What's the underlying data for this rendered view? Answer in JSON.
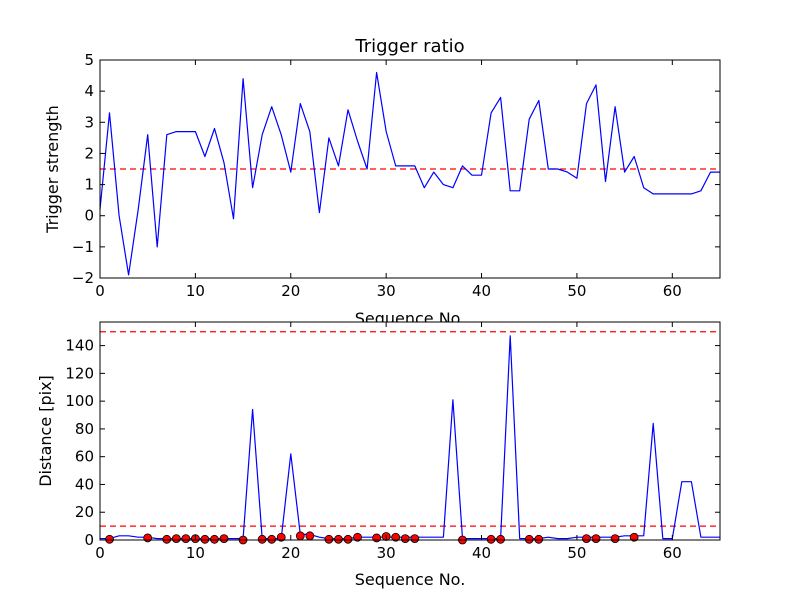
{
  "chart_data": [
    {
      "type": "line",
      "title": "Trigger ratio",
      "xlabel": "Sequence No.",
      "ylabel": "Trigger strength",
      "xlim": [
        0,
        65
      ],
      "ylim": [
        -2,
        5
      ],
      "xticks": [
        0,
        10,
        20,
        30,
        40,
        50,
        60
      ],
      "yticks": [
        -2,
        -1,
        0,
        1,
        2,
        3,
        4,
        5
      ],
      "grid": false,
      "legend": "none",
      "series": [
        {
          "color": "#0000ff",
          "style": "solid",
          "x": [
            0,
            1,
            2,
            3,
            4,
            5,
            6,
            7,
            8,
            9,
            10,
            11,
            12,
            13,
            14,
            15,
            16,
            17,
            18,
            19,
            20,
            21,
            22,
            23,
            24,
            25,
            26,
            27,
            28,
            29,
            30,
            31,
            32,
            33,
            34,
            35,
            36,
            37,
            38,
            39,
            40,
            41,
            42,
            43,
            44,
            45,
            46,
            47,
            48,
            49,
            50,
            51,
            52,
            53,
            54,
            55,
            56,
            57,
            58,
            59,
            60,
            61,
            62,
            63,
            64,
            65
          ],
          "y": [
            0.2,
            3.3,
            0.0,
            -1.9,
            0.2,
            2.6,
            -1.0,
            2.6,
            2.7,
            2.7,
            2.7,
            1.9,
            2.8,
            1.7,
            -0.1,
            4.4,
            0.9,
            2.6,
            3.5,
            2.6,
            1.4,
            3.6,
            2.7,
            0.1,
            2.5,
            1.6,
            3.4,
            2.4,
            1.5,
            4.6,
            2.7,
            1.6,
            1.6,
            1.6,
            0.9,
            1.4,
            1.0,
            0.9,
            1.6,
            1.3,
            1.3,
            3.3,
            3.8,
            0.8,
            0.8,
            3.1,
            3.7,
            1.5,
            1.5,
            1.4,
            1.2,
            3.6,
            4.2,
            1.1,
            3.5,
            1.4,
            1.9,
            0.9,
            0.7,
            0.7,
            0.7,
            0.7,
            0.7,
            0.8,
            1.4,
            1.4
          ]
        }
      ],
      "reference_lines": [
        {
          "y": 1.5,
          "color": "#ff0000",
          "style": "dashed"
        }
      ]
    },
    {
      "type": "line",
      "title": "",
      "xlabel": "Sequence No.",
      "ylabel": "Distance [pix]",
      "xlim": [
        0,
        65
      ],
      "ylim": [
        0,
        157
      ],
      "xticks": [
        0,
        10,
        20,
        30,
        40,
        50,
        60
      ],
      "yticks": [
        0,
        20,
        40,
        60,
        80,
        100,
        120,
        140
      ],
      "grid": false,
      "legend": "none",
      "series": [
        {
          "color": "#0000ff",
          "style": "solid",
          "x": [
            0,
            1,
            2,
            3,
            4,
            5,
            6,
            7,
            8,
            9,
            10,
            11,
            12,
            13,
            14,
            15,
            16,
            17,
            18,
            19,
            20,
            21,
            22,
            23,
            24,
            25,
            26,
            27,
            28,
            29,
            30,
            31,
            32,
            33,
            34,
            35,
            36,
            37,
            38,
            39,
            40,
            41,
            42,
            43,
            44,
            45,
            46,
            47,
            48,
            49,
            50,
            51,
            52,
            53,
            54,
            55,
            56,
            57,
            58,
            59,
            60,
            61,
            62,
            63,
            64,
            65
          ],
          "y": [
            1,
            1,
            3,
            3,
            2,
            2,
            1,
            1,
            1,
            1,
            1,
            1,
            1,
            1,
            1,
            1,
            94,
            1,
            1,
            1,
            62,
            4,
            4,
            2,
            1,
            1,
            1,
            2,
            2,
            2,
            2,
            2,
            2,
            2,
            2,
            2,
            2,
            101,
            1,
            1,
            1,
            1,
            1,
            147,
            1,
            1,
            1,
            2,
            1,
            1,
            2,
            2,
            2,
            2,
            2,
            3,
            3,
            3,
            84,
            1,
            1,
            42,
            42,
            2,
            2,
            2
          ]
        },
        {
          "type": "scatter",
          "color": "#ff0000",
          "marker": "circle",
          "x": [
            1,
            5,
            7,
            8,
            9,
            10,
            11,
            12,
            13,
            15,
            17,
            18,
            19,
            21,
            22,
            24,
            25,
            26,
            27,
            29,
            30,
            31,
            32,
            33,
            38,
            41,
            42,
            45,
            46,
            51,
            52,
            54,
            56
          ],
          "y": [
            0.5,
            1.5,
            0.5,
            1,
            1,
            1,
            0.5,
            0.5,
            1,
            0,
            0.5,
            0.5,
            2,
            3,
            3,
            0.5,
            0.5,
            0.5,
            2,
            1.5,
            2.5,
            2,
            1,
            1,
            0,
            0.5,
            0.5,
            0.5,
            0.5,
            1,
            1,
            1,
            2
          ]
        }
      ],
      "reference_lines": [
        {
          "y": 10,
          "color": "#ff0000",
          "style": "dashed"
        },
        {
          "y": 150,
          "color": "#ff0000",
          "style": "dashed"
        }
      ]
    }
  ]
}
